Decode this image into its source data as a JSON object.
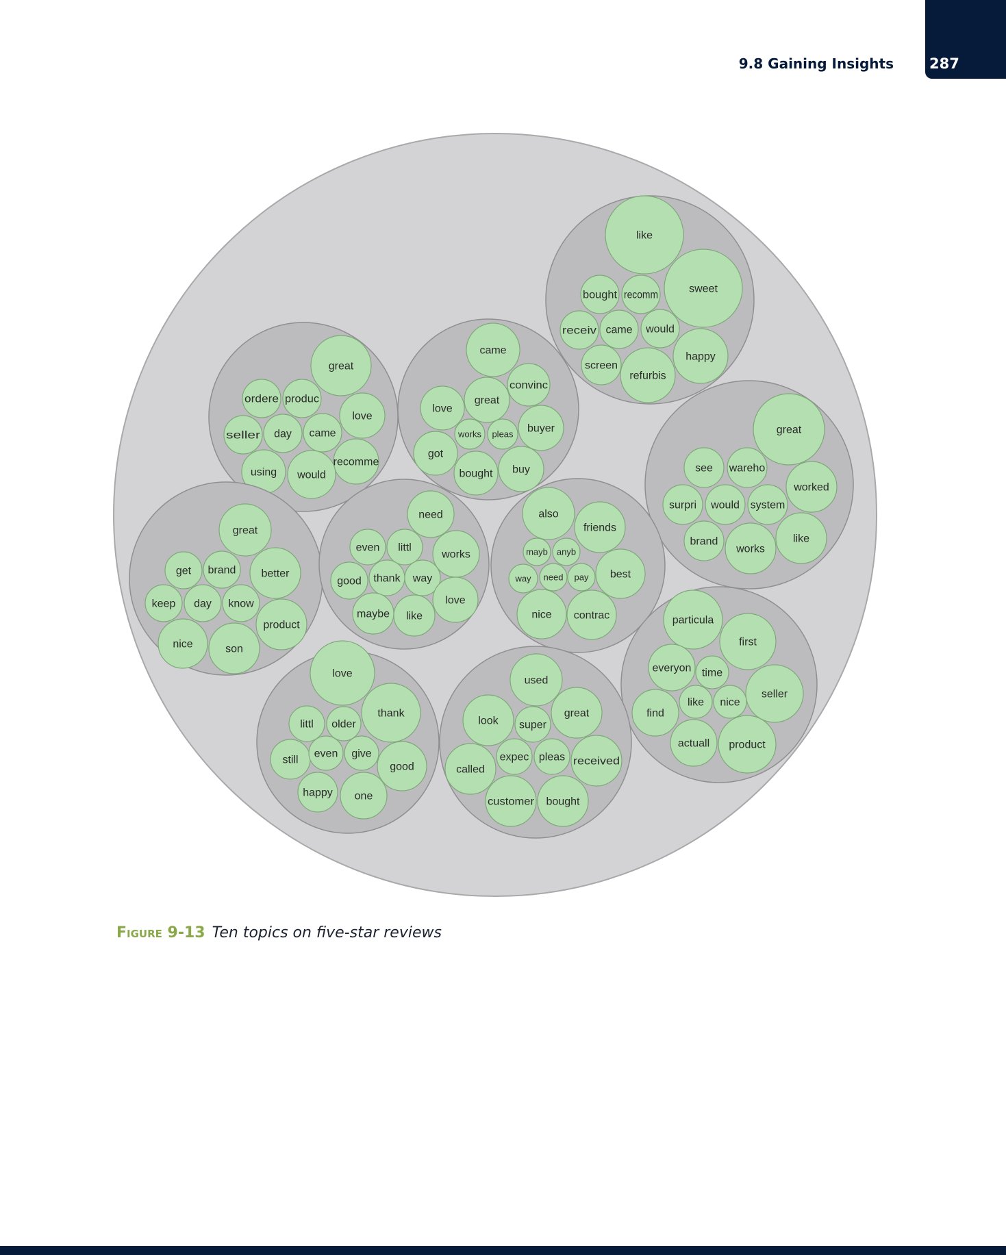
{
  "header": {
    "section_title": "9.8 Gaining Insights",
    "page_number": "287"
  },
  "figure": {
    "label": "Figure 9-13",
    "caption": "Ten topics on five-star reviews"
  },
  "colors": {
    "outer_circle": "#d3d3d5",
    "topic_circle": "#bcbcbe",
    "word_circle": "#b4dfb0",
    "word_stroke": "#7fa77b",
    "navy": "#061a3a",
    "caption_accent": "#8aa84a"
  },
  "topics": [
    {
      "words": [
        "like",
        "sweet",
        "bought",
        "recomm",
        "receiv",
        "came",
        "would",
        "happy",
        "screen",
        "refurbis"
      ]
    },
    {
      "words": [
        "great",
        "ordere",
        "produc",
        "love",
        "seller",
        "day",
        "came",
        "recomme",
        "using",
        "would"
      ]
    },
    {
      "words": [
        "came",
        "convinc",
        "great",
        "love",
        "works",
        "pleas",
        "buyer",
        "got",
        "bought",
        "buy"
      ]
    },
    {
      "words": [
        "great",
        "see",
        "wareho",
        "worked",
        "surpri",
        "would",
        "system",
        "brand",
        "works",
        "like"
      ]
    },
    {
      "words": [
        "great",
        "get",
        "brand",
        "better",
        "keep",
        "day",
        "know",
        "product",
        "nice",
        "son"
      ]
    },
    {
      "words": [
        "need",
        "even",
        "littl",
        "works",
        "good",
        "thank",
        "way",
        "love",
        "maybe",
        "like"
      ]
    },
    {
      "words": [
        "also",
        "friends",
        "mayb",
        "anyb",
        "way",
        "need",
        "pay",
        "best",
        "nice",
        "contrac"
      ]
    },
    {
      "words": [
        "particula",
        "first",
        "everyon",
        "time",
        "like",
        "nice",
        "seller",
        "find",
        "actuall",
        "product"
      ]
    },
    {
      "words": [
        "love",
        "thank",
        "littl",
        "older",
        "still",
        "even",
        "give",
        "good",
        "happy",
        "one"
      ]
    },
    {
      "words": [
        "used",
        "look",
        "super",
        "great",
        "called",
        "expec",
        "pleas",
        "received",
        "customer",
        "bought"
      ]
    }
  ]
}
